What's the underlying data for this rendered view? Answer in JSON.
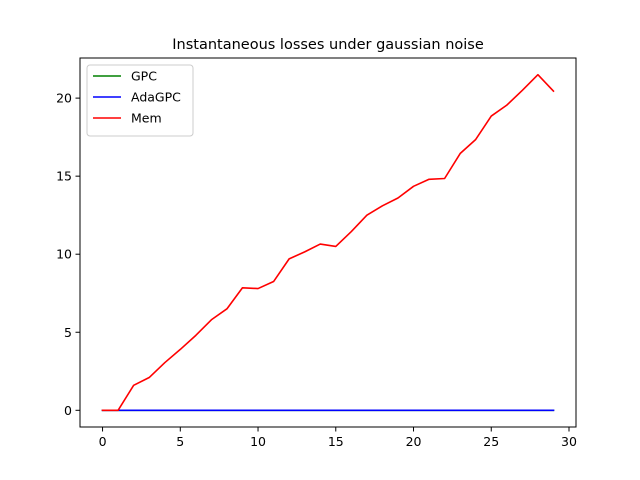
{
  "chart_data": {
    "type": "line",
    "title": "Instantaneous losses under gaussian noise",
    "xlabel": "",
    "ylabel": "",
    "xlim": [
      -1.45,
      30.45
    ],
    "ylim": [
      -1.07,
      22.57
    ],
    "xticks": [
      0,
      5,
      10,
      15,
      20,
      25,
      30
    ],
    "yticks": [
      0,
      5,
      10,
      15,
      20
    ],
    "grid": false,
    "legend_position": "top-left",
    "x": [
      0,
      1,
      2,
      3,
      4,
      5,
      6,
      7,
      8,
      9,
      10,
      11,
      12,
      13,
      14,
      15,
      16,
      17,
      18,
      19,
      20,
      21,
      22,
      23,
      24,
      25,
      26,
      27,
      28,
      29
    ],
    "series": [
      {
        "name": "GPC",
        "color": "#008000",
        "values": [
          0,
          0,
          0,
          0,
          0,
          0,
          0,
          0,
          0,
          0,
          0,
          0,
          0,
          0,
          0,
          0,
          0,
          0,
          0,
          0,
          0,
          0,
          0,
          0,
          0,
          0,
          0,
          0,
          0,
          0
        ]
      },
      {
        "name": "AdaGPC",
        "color": "#0000ff",
        "values": [
          0,
          0,
          0,
          0,
          0,
          0,
          0,
          0,
          0,
          0,
          0,
          0,
          0,
          0,
          0,
          0,
          0,
          0,
          0,
          0,
          0,
          0,
          0,
          0,
          0,
          0,
          0,
          0,
          0,
          0
        ]
      },
      {
        "name": "Mem",
        "color": "#ff0000",
        "values": [
          0,
          0,
          1.6,
          2.1,
          3.05,
          3.9,
          4.8,
          5.8,
          6.5,
          7.85,
          7.8,
          8.25,
          9.7,
          10.15,
          10.65,
          10.5,
          11.45,
          12.5,
          13.1,
          13.6,
          14.35,
          14.8,
          14.85,
          16.45,
          17.35,
          18.85,
          19.55,
          20.5,
          21.5,
          20.45
        ]
      }
    ]
  }
}
